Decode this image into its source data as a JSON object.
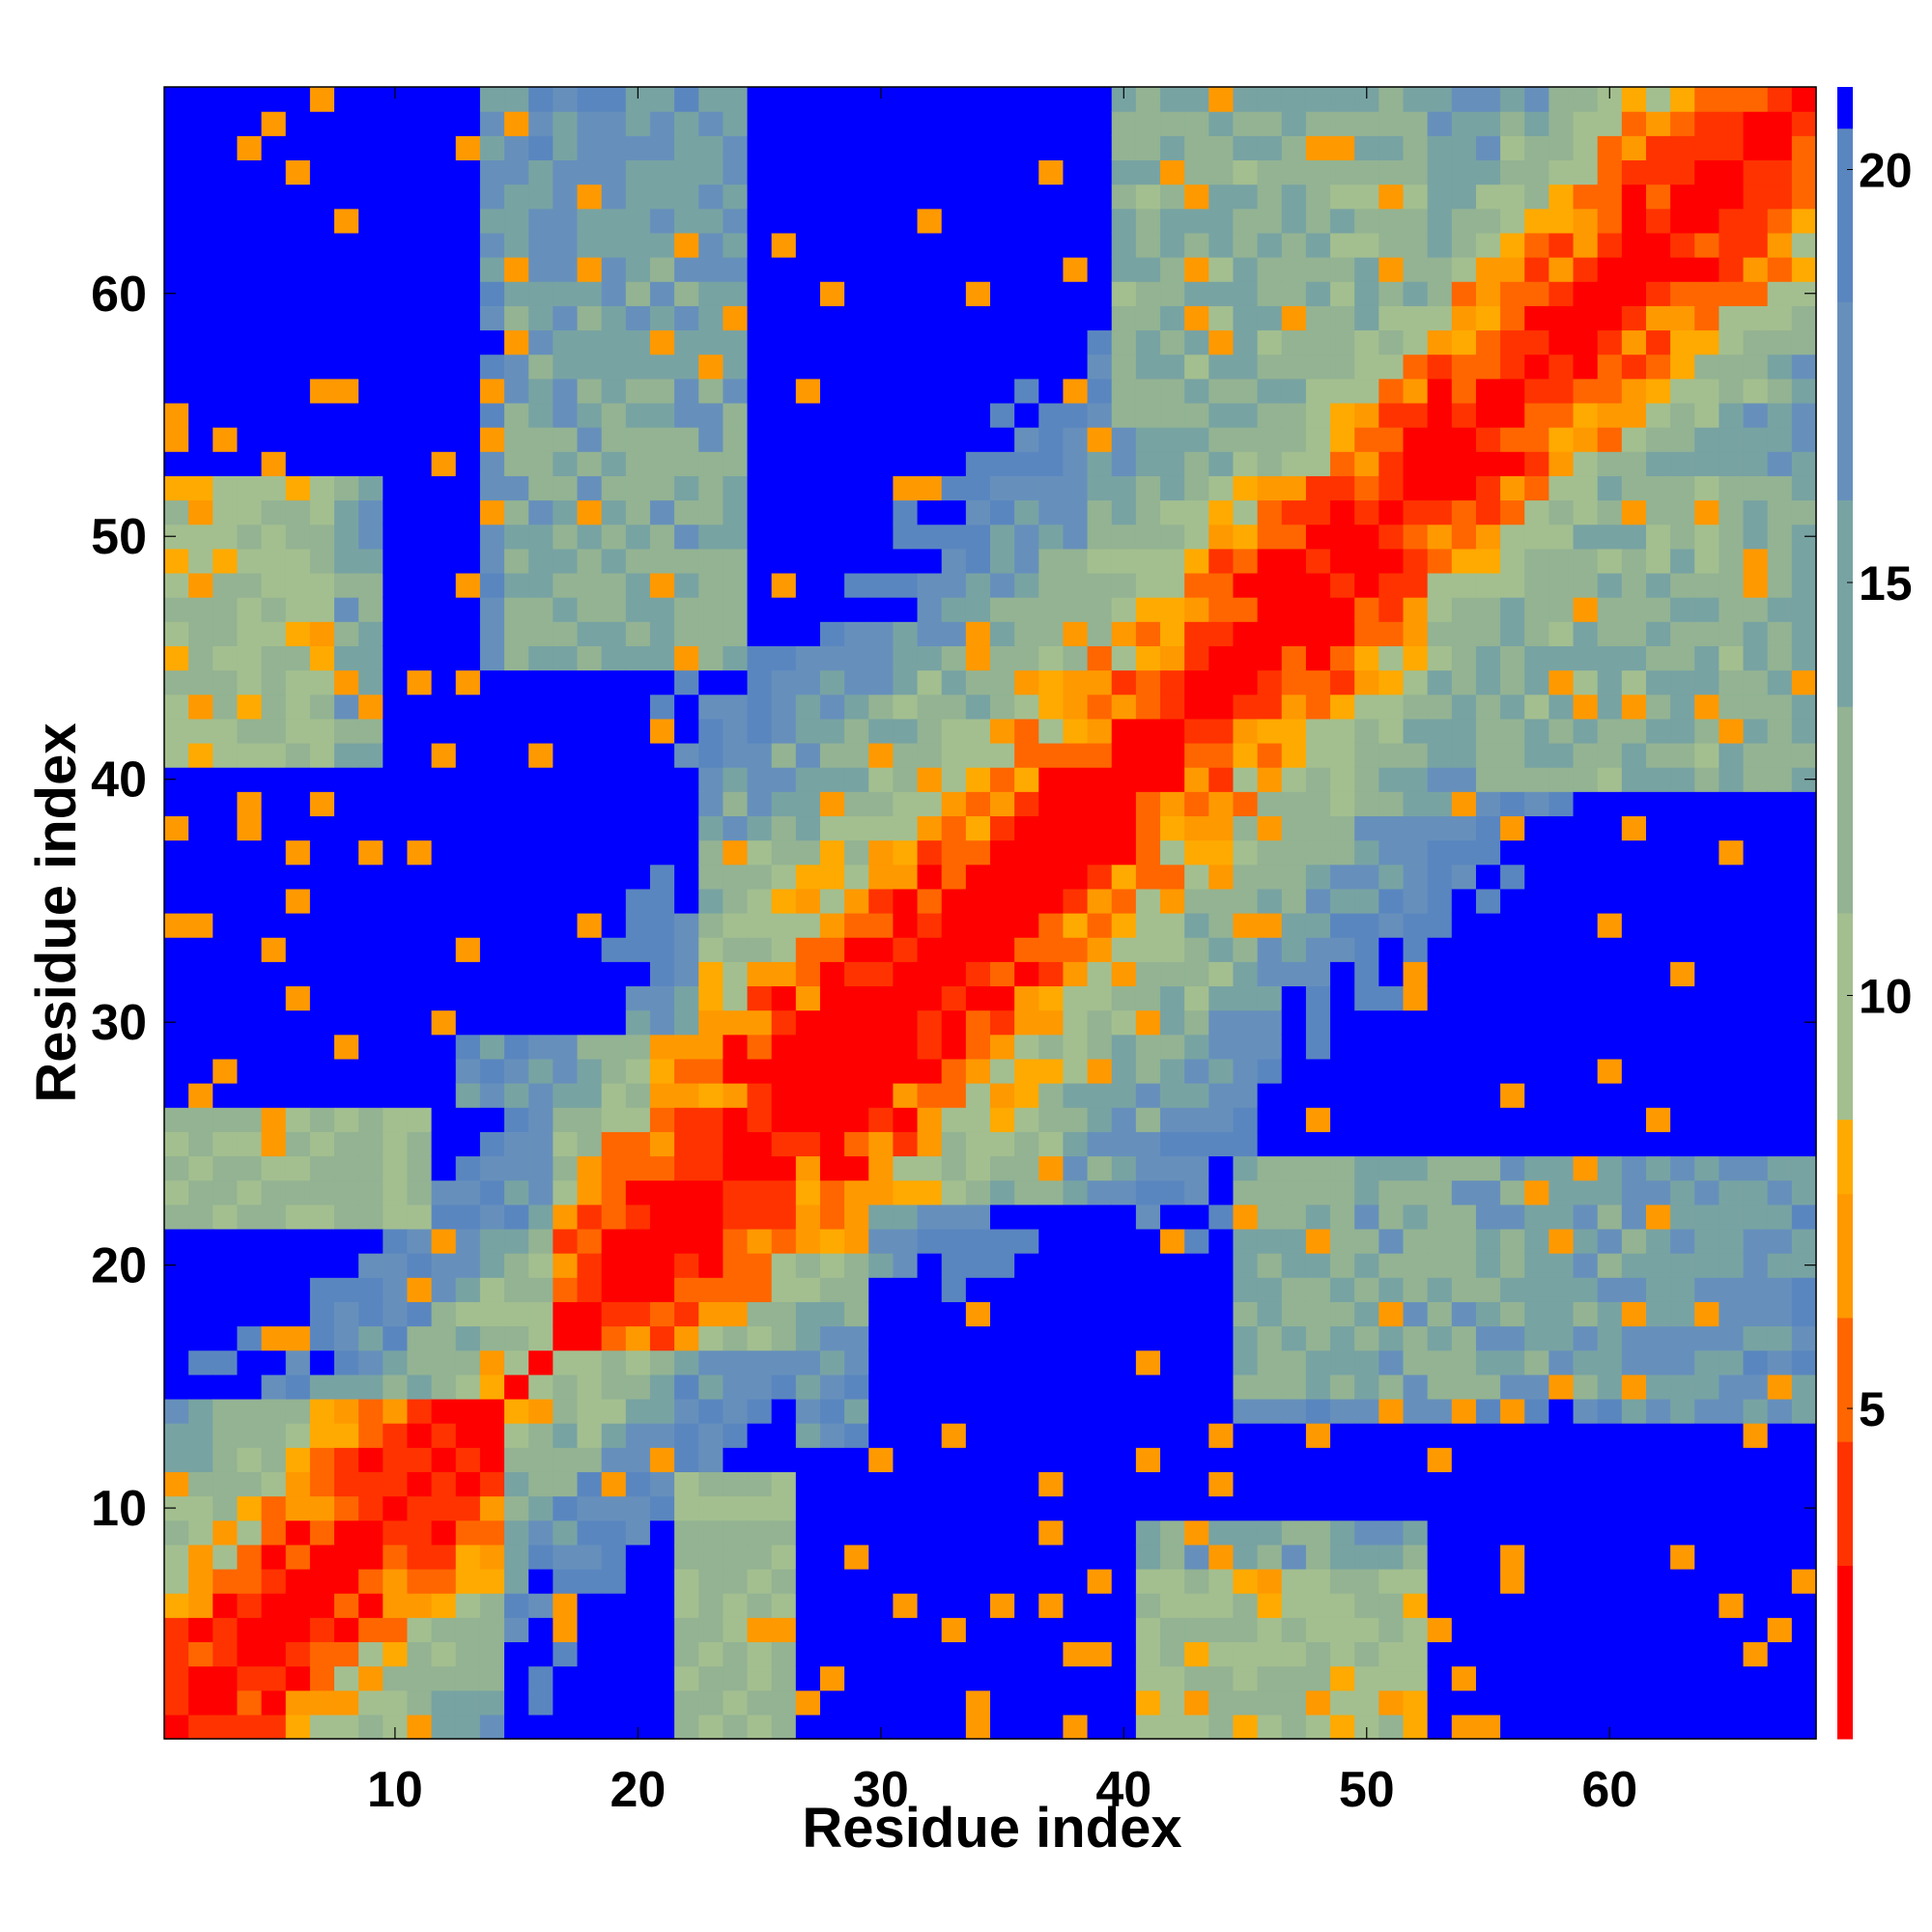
{
  "chart_data": {
    "type": "heatmap",
    "title": "",
    "xlabel": "Residue index",
    "ylabel": "Residue index",
    "n_residues": 68,
    "xlim": [
      1,
      68
    ],
    "ylim": [
      1,
      68
    ],
    "x_ticks": [
      10,
      20,
      30,
      40,
      50,
      60
    ],
    "y_ticks": [
      10,
      20,
      30,
      40,
      50,
      60
    ],
    "colorbar": {
      "label": "",
      "range": [
        1,
        21
      ],
      "ticks": [
        5,
        10,
        15,
        20
      ],
      "colors": [
        "#ff0000",
        "#ff3300",
        "#ff6600",
        "#ff9900",
        "#ffaa00",
        "#a3bf8f",
        "#93b393",
        "#78a3a3",
        "#6690bb",
        "#5a86c0",
        "#0000ff"
      ],
      "boundaries": [
        1,
        3.1,
        4.6,
        6.1,
        7.6,
        8.5,
        11,
        13.5,
        16,
        18.4,
        20.5,
        21
      ]
    },
    "matrix_description": "Symmetric pairwise C-alpha distance map (Angstrom) of a 68-residue protein; values near 0 on the diagonal rising to >20 far from it, with contact patches between residues 1-10 and 40-52 and between 1-25 and 43-52."
  }
}
